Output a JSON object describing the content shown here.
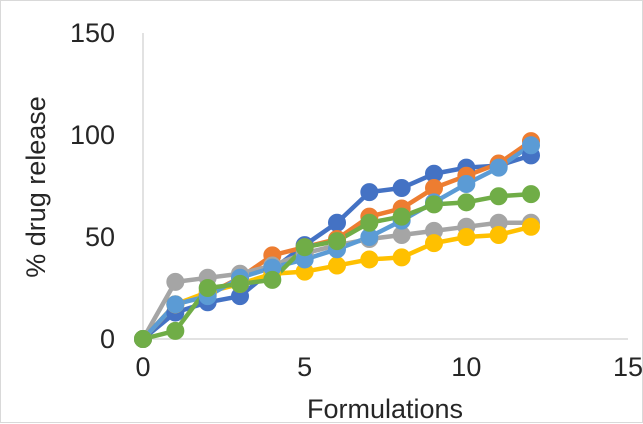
{
  "chart_data": {
    "type": "line",
    "title": "",
    "xlabel": "Formulations",
    "ylabel": "% drug release",
    "xlim": [
      0,
      15
    ],
    "ylim": [
      0,
      150
    ],
    "x_ticks": [
      "0",
      "5",
      "10",
      "15"
    ],
    "y_ticks": [
      "0",
      "50",
      "100",
      "150"
    ],
    "grid": false,
    "legend": "none",
    "x": [
      0,
      1,
      2,
      3,
      4,
      5,
      6,
      7,
      8,
      9,
      10,
      11,
      12
    ],
    "series": [
      {
        "color": "#4472c4",
        "values": [
          0,
          13,
          18,
          21,
          34,
          46,
          57,
          72,
          74,
          81,
          84,
          85,
          90
        ]
      },
      {
        "color": "#ed7d31",
        "values": [
          0,
          17,
          22,
          30,
          41,
          45,
          49,
          60,
          64,
          74,
          80,
          86,
          97
        ]
      },
      {
        "color": "#a5a5a5",
        "values": [
          0,
          28,
          30,
          32,
          36,
          42,
          46,
          49,
          51,
          53,
          55,
          57,
          57
        ]
      },
      {
        "color": "#ffc000",
        "values": [
          0,
          17,
          23,
          27,
          32,
          33,
          36,
          39,
          40,
          47,
          50,
          51,
          55
        ]
      },
      {
        "color": "#5b9bd5",
        "values": [
          0,
          17,
          21,
          30,
          35,
          39,
          44,
          50,
          58,
          67,
          76,
          84,
          95
        ]
      },
      {
        "color": "#70ad47",
        "values": [
          0,
          4,
          25,
          27,
          29,
          45,
          48,
          57,
          60,
          66,
          67,
          70,
          71
        ]
      }
    ]
  }
}
